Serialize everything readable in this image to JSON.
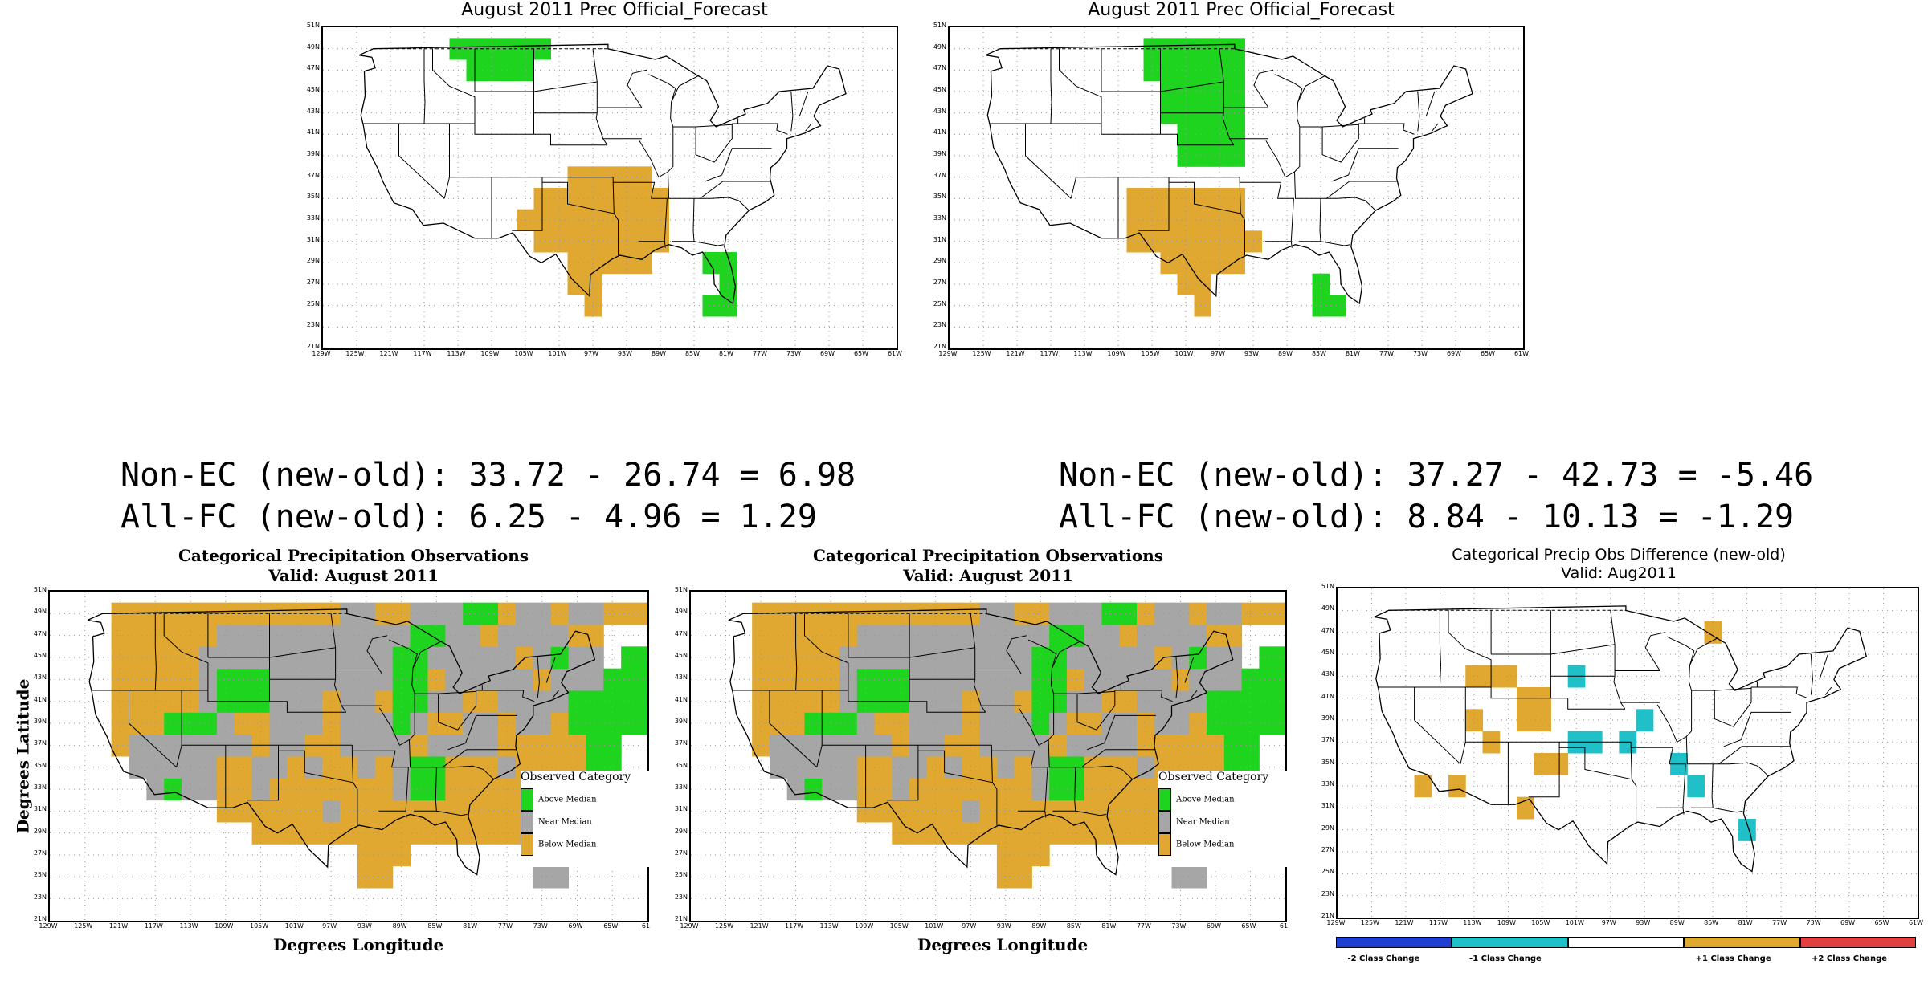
{
  "top_left": {
    "title": "August 2011 Prec Official_Forecast"
  },
  "top_right": {
    "title": "August 2011 Prec Official_Forecast"
  },
  "stats_left": {
    "line1": "Non-EC (new-old): 33.72 - 26.74 = 6.98",
    "line2": "All-FC (new-old): 6.25 - 4.96 = 1.29"
  },
  "stats_right": {
    "line1": "Non-EC (new-old): 37.27 - 42.73 = -5.46",
    "line2": "All-FC (new-old): 8.84 - 10.13 = -1.29"
  },
  "bottom_left": {
    "title": "Categorical Precipitation Observations",
    "subtitle": "Valid: August 2011",
    "ylabel": "Degrees Latitude",
    "xlabel": "Degrees Longitude",
    "legend_title": "Observed Category",
    "legend": [
      "Above Median",
      "Near Median",
      "Below Median"
    ]
  },
  "bottom_middle": {
    "title": "Categorical Precipitation Observations",
    "subtitle": "Valid: August 2011",
    "xlabel": "Degrees Longitude",
    "legend_title": "Observed Category",
    "legend": [
      "Above Median",
      "Near Median",
      "Below Median"
    ]
  },
  "bottom_right": {
    "title": "Categorical Precip Obs Difference (new-old)",
    "subtitle": "Valid: Aug2011",
    "colorbar": [
      "-2 Class Change",
      "-1 Class Change",
      "+1 Class Change",
      "+2 Class Change"
    ]
  },
  "colors": {
    "above": "#1fd41f",
    "near": "#a6a6a6",
    "below": "#e0a830",
    "minus2": "#1f3fd0",
    "minus1": "#1fc0c8",
    "plus1": "#e0a830",
    "plus2": "#e04040"
  },
  "lat_ticks": [
    "51N",
    "49N",
    "47N",
    "45N",
    "43N",
    "41N",
    "39N",
    "37N",
    "35N",
    "33N",
    "31N",
    "29N",
    "27N",
    "25N",
    "23N",
    "21N"
  ],
  "lon_ticks": [
    "129W",
    "125W",
    "121W",
    "117W",
    "113W",
    "109W",
    "105W",
    "101W",
    "97W",
    "93W",
    "89W",
    "85W",
    "81W",
    "77W",
    "73W",
    "69W",
    "65W",
    "61W"
  ],
  "lon_ticks_bottom": [
    "129W",
    "125W",
    "121W",
    "117W",
    "113W",
    "109W",
    "105W",
    "101W",
    "97W",
    "93W",
    "89W",
    "85W",
    "81W",
    "77W",
    "73W",
    "69W",
    "65W",
    "61"
  ],
  "chart_data": [
    {
      "type": "heatmap",
      "panel": "top_left",
      "title": "August 2011 Prec Official_Forecast",
      "cell_size_deg": 2,
      "categories": {
        "A": "above",
        "B": "below"
      },
      "cells": [
        [
          -113,
          49,
          "A"
        ],
        [
          -111,
          49,
          "A"
        ],
        [
          -109,
          49,
          "A"
        ],
        [
          -107,
          49,
          "A"
        ],
        [
          -105,
          49,
          "A"
        ],
        [
          -103,
          49,
          "A"
        ],
        [
          -111,
          47,
          "A"
        ],
        [
          -109,
          47,
          "A"
        ],
        [
          -107,
          47,
          "A"
        ],
        [
          -105,
          47,
          "A"
        ],
        [
          -99,
          37,
          "B"
        ],
        [
          -97,
          37,
          "B"
        ],
        [
          -95,
          37,
          "B"
        ],
        [
          -93,
          37,
          "B"
        ],
        [
          -91,
          37,
          "B"
        ],
        [
          -103,
          35,
          "B"
        ],
        [
          -101,
          35,
          "B"
        ],
        [
          -99,
          35,
          "B"
        ],
        [
          -97,
          35,
          "B"
        ],
        [
          -95,
          35,
          "B"
        ],
        [
          -93,
          35,
          "B"
        ],
        [
          -91,
          35,
          "B"
        ],
        [
          -89,
          35,
          "B"
        ],
        [
          -105,
          33,
          "B"
        ],
        [
          -103,
          33,
          "B"
        ],
        [
          -101,
          33,
          "B"
        ],
        [
          -99,
          33,
          "B"
        ],
        [
          -97,
          33,
          "B"
        ],
        [
          -95,
          33,
          "B"
        ],
        [
          -93,
          33,
          "B"
        ],
        [
          -91,
          33,
          "B"
        ],
        [
          -89,
          33,
          "B"
        ],
        [
          -103,
          31,
          "B"
        ],
        [
          -101,
          31,
          "B"
        ],
        [
          -99,
          31,
          "B"
        ],
        [
          -97,
          31,
          "B"
        ],
        [
          -95,
          31,
          "B"
        ],
        [
          -93,
          31,
          "B"
        ],
        [
          -91,
          31,
          "B"
        ],
        [
          -89,
          31,
          "B"
        ],
        [
          -99,
          29,
          "B"
        ],
        [
          -97,
          29,
          "B"
        ],
        [
          -95,
          29,
          "B"
        ],
        [
          -93,
          29,
          "B"
        ],
        [
          -91,
          29,
          "B"
        ],
        [
          -99,
          27,
          "B"
        ],
        [
          -97,
          27,
          "B"
        ],
        [
          -97,
          25,
          "B"
        ],
        [
          -83,
          29,
          "A"
        ],
        [
          -81,
          29,
          "A"
        ],
        [
          -81,
          27,
          "A"
        ],
        [
          -83,
          25,
          "A"
        ],
        [
          -81,
          25,
          "A"
        ]
      ]
    },
    {
      "type": "heatmap",
      "panel": "top_right",
      "title": "August 2011 Prec Official_Forecast",
      "cell_size_deg": 2,
      "categories": {
        "A": "above",
        "B": "below"
      },
      "cells": [
        [
          -105,
          49,
          "A"
        ],
        [
          -103,
          49,
          "A"
        ],
        [
          -101,
          49,
          "A"
        ],
        [
          -99,
          49,
          "A"
        ],
        [
          -97,
          49,
          "A"
        ],
        [
          -95,
          49,
          "A"
        ],
        [
          -105,
          47,
          "A"
        ],
        [
          -103,
          47,
          "A"
        ],
        [
          -101,
          47,
          "A"
        ],
        [
          -99,
          47,
          "A"
        ],
        [
          -97,
          47,
          "A"
        ],
        [
          -95,
          47,
          "A"
        ],
        [
          -103,
          45,
          "A"
        ],
        [
          -101,
          45,
          "A"
        ],
        [
          -99,
          45,
          "A"
        ],
        [
          -97,
          45,
          "A"
        ],
        [
          -95,
          45,
          "A"
        ],
        [
          -103,
          43,
          "A"
        ],
        [
          -101,
          43,
          "A"
        ],
        [
          -99,
          43,
          "A"
        ],
        [
          -97,
          43,
          "A"
        ],
        [
          -95,
          43,
          "A"
        ],
        [
          -101,
          41,
          "A"
        ],
        [
          -99,
          41,
          "A"
        ],
        [
          -97,
          41,
          "A"
        ],
        [
          -95,
          41,
          "A"
        ],
        [
          -101,
          39,
          "A"
        ],
        [
          -99,
          39,
          "A"
        ],
        [
          -97,
          39,
          "A"
        ],
        [
          -95,
          39,
          "A"
        ],
        [
          -107,
          35,
          "B"
        ],
        [
          -105,
          35,
          "B"
        ],
        [
          -103,
          35,
          "B"
        ],
        [
          -101,
          35,
          "B"
        ],
        [
          -99,
          35,
          "B"
        ],
        [
          -97,
          35,
          "B"
        ],
        [
          -95,
          35,
          "B"
        ],
        [
          -107,
          33,
          "B"
        ],
        [
          -105,
          33,
          "B"
        ],
        [
          -103,
          33,
          "B"
        ],
        [
          -101,
          33,
          "B"
        ],
        [
          -99,
          33,
          "B"
        ],
        [
          -97,
          33,
          "B"
        ],
        [
          -95,
          33,
          "B"
        ],
        [
          -107,
          31,
          "B"
        ],
        [
          -105,
          31,
          "B"
        ],
        [
          -103,
          31,
          "B"
        ],
        [
          -101,
          31,
          "B"
        ],
        [
          -99,
          31,
          "B"
        ],
        [
          -97,
          31,
          "B"
        ],
        [
          -95,
          31,
          "B"
        ],
        [
          -93,
          31,
          "B"
        ],
        [
          -103,
          29,
          "B"
        ],
        [
          -101,
          29,
          "B"
        ],
        [
          -99,
          29,
          "B"
        ],
        [
          -97,
          29,
          "B"
        ],
        [
          -95,
          29,
          "B"
        ],
        [
          -101,
          27,
          "B"
        ],
        [
          -99,
          27,
          "B"
        ],
        [
          -99,
          25,
          "B"
        ],
        [
          -85,
          27,
          "A"
        ],
        [
          -85,
          25,
          "A"
        ],
        [
          -83,
          25,
          "A"
        ]
      ]
    },
    {
      "type": "heatmap",
      "panel": "bottom_left",
      "title": "Categorical Precipitation Observations",
      "cell_size_deg": 2,
      "categories": {
        "A": "above",
        "N": "near",
        "B": "below"
      },
      "rows": {
        "49": "..BBBBBBBBBBBBBNNBBNNNAABNNBNNBBB.",
        "47": "..BBBBBBNNNNNNNNNNNAANNBNNNNBB.....",
        "45": "..BBBBBNNNNNNNNNNNAANNNNNBNANN.AAAA",
        "43": "..BBBBBNAAANNNNNNNAABNNNNNBNNNAAAAA",
        "41": "..BBBBBNAAANNNBNNBAANNBBNNNNAAAAAA.",
        "39": "..BBBAAANBBNNNBNNNANBBNNBNNBAAAAA..",
        "37": "..BNNNNNNNBNNBBNNNNBNNNNBBBBBAA....",
        "35": "...NNNNNBBNNBNBBNBNAABBBNBBBBAA....",
        "33": "....NANNBBNBBBBBBBNAABBBBBBBBBA....",
        "31": "........BBBBBBNBBBBBBBBBBBBBB......",
        "29": "..........BBBBBBBBBBBBBBBBBBB......",
        "27": "................BBB.......NN.......",
        "25": "................BB........NN.......",
        "23": "..................................."
      },
      "row_start_lon": -125
    },
    {
      "type": "heatmap",
      "panel": "bottom_middle",
      "title": "Categorical Precipitation Observations",
      "cell_size_deg": 2,
      "categories": {
        "A": "above",
        "N": "near",
        "B": "below"
      },
      "rows": {
        "49": "..BBBBBBBBBBBBBNNBBNNNAABNNBNNBBB.",
        "47": "..BBBBBBNNNNNNNNNNNAANNBNNNNBB.....",
        "45": "..BBBBBNNNNNNNNNNNAANNNNNBNANN.AAAA",
        "43": "..BBBBBNAAANNNNNNNAABNNNNNBNNNAAAAA",
        "41": "..BBBBBNAAANNNBNNBAANNBBNNNNAAAAAA.",
        "39": "..BBBAAANBBNNNBNNNANBBNNBNNBAAAAA..",
        "37": "..BNNNNNNNBNNBBNNNNBNNNNBBBBBAA....",
        "35": "...NNNNNBBNNBNBBNBNAABBBNBBBBAA....",
        "33": "....NANNBBNBBBBBBBNAABBBBBBBBBA....",
        "31": "........BBBBBBNBBBBBBBBBBBBBB......",
        "29": "..........BBBBBBBBBBBBBBBBBBB......",
        "27": "................BBB.......NN.......",
        "25": "................BB........NN.......",
        "23": "..................................."
      },
      "row_start_lon": -125
    },
    {
      "type": "heatmap",
      "panel": "bottom_right",
      "title": "Categorical Precip Obs Difference (new-old)",
      "cell_size_deg": 2,
      "categories": {
        "c": "minus1",
        "p": "plus1"
      },
      "cells": [
        [
          -85,
          47,
          "p"
        ],
        [
          -113,
          43,
          "p"
        ],
        [
          -111,
          43,
          "p"
        ],
        [
          -109,
          43,
          "p"
        ],
        [
          -101,
          43,
          "c"
        ],
        [
          -107,
          41,
          "p"
        ],
        [
          -105,
          41,
          "p"
        ],
        [
          -113,
          39,
          "p"
        ],
        [
          -107,
          39,
          "p"
        ],
        [
          -105,
          39,
          "p"
        ],
        [
          -93,
          39,
          "c"
        ],
        [
          -111,
          37,
          "p"
        ],
        [
          -101,
          37,
          "c"
        ],
        [
          -99,
          37,
          "c"
        ],
        [
          -95,
          37,
          "c"
        ],
        [
          -105,
          35,
          "p"
        ],
        [
          -103,
          35,
          "p"
        ],
        [
          -89,
          35,
          "c"
        ],
        [
          -119,
          33,
          "p"
        ],
        [
          -115,
          33,
          "p"
        ],
        [
          -87,
          33,
          "c"
        ],
        [
          -107,
          31,
          "p"
        ],
        [
          -81,
          29,
          "c"
        ]
      ]
    }
  ]
}
